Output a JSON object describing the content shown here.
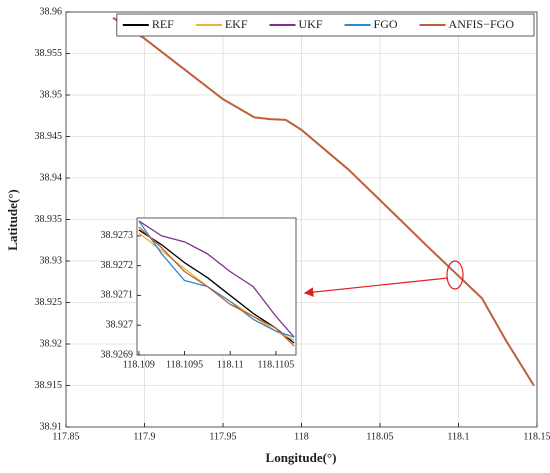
{
  "chart_data": [
    {
      "type": "line",
      "xlabel": "Longitude(°)",
      "ylabel": "Latitude(°)",
      "x": [
        117.88,
        117.9,
        117.95,
        117.97,
        117.98,
        117.99,
        118.0,
        118.03,
        118.06,
        118.08,
        118.1,
        118.115,
        118.13,
        118.148
      ],
      "series": [
        {
          "name": "REF",
          "color": "#000000",
          "values": [
            38.9593,
            38.9568,
            38.9495,
            38.9473,
            38.9471,
            38.947,
            38.9458,
            38.941,
            38.9355,
            38.9318,
            38.9282,
            38.9255,
            38.9205,
            38.915
          ]
        },
        {
          "name": "EKF",
          "color": "#e8b53a",
          "values": [
            38.9593,
            38.9568,
            38.9495,
            38.9473,
            38.9471,
            38.947,
            38.9458,
            38.941,
            38.9355,
            38.9318,
            38.9282,
            38.9255,
            38.9205,
            38.915
          ]
        },
        {
          "name": "UKF",
          "color": "#7e2f8e",
          "values": [
            38.9593,
            38.9568,
            38.9495,
            38.9473,
            38.9471,
            38.947,
            38.9458,
            38.941,
            38.9355,
            38.9318,
            38.9282,
            38.9255,
            38.9205,
            38.915
          ]
        },
        {
          "name": "FGO",
          "color": "#2b8ccc",
          "values": [
            38.9593,
            38.9568,
            38.9495,
            38.9473,
            38.9471,
            38.947,
            38.9458,
            38.941,
            38.9355,
            38.9318,
            38.9282,
            38.9255,
            38.9205,
            38.915
          ]
        },
        {
          "name": "ANFIS−FGO",
          "color": "#c0603a",
          "values": [
            38.9593,
            38.9568,
            38.9495,
            38.9473,
            38.9471,
            38.947,
            38.9458,
            38.941,
            38.9355,
            38.9318,
            38.9282,
            38.9255,
            38.9205,
            38.915
          ]
        }
      ],
      "xlim": [
        117.85,
        118.15
      ],
      "xticks": [
        117.85,
        117.9,
        117.95,
        118,
        118.05,
        118.1,
        118.15
      ],
      "ylim": [
        38.91,
        38.96
      ],
      "yticks": [
        38.91,
        38.915,
        38.92,
        38.925,
        38.93,
        38.935,
        38.94,
        38.945,
        38.95,
        38.955,
        38.96
      ],
      "grid": true,
      "legend": "top"
    },
    {
      "type": "line",
      "x": [
        118.109,
        118.10925,
        118.1095,
        118.10975,
        118.11,
        118.11025,
        118.1105,
        118.1107
      ],
      "series": [
        {
          "color": "#000000",
          "values": [
            38.92732,
            38.92727,
            38.92721,
            38.92716,
            38.9271,
            38.92704,
            38.92699,
            38.92694
          ]
        },
        {
          "color": "#e8b53a",
          "values": [
            38.92731,
            38.92725,
            38.92719,
            38.92713,
            38.92708,
            38.92703,
            38.92698,
            38.92695
          ]
        },
        {
          "color": "#7e2f8e",
          "values": [
            38.92735,
            38.9273,
            38.92728,
            38.92724,
            38.92718,
            38.92713,
            38.92703,
            38.92696
          ]
        },
        {
          "color": "#2b8ccc",
          "values": [
            38.92735,
            38.92724,
            38.92715,
            38.92713,
            38.92708,
            38.92702,
            38.92698,
            38.92696
          ]
        },
        {
          "color": "#c0603a",
          "values": [
            38.92733,
            38.92726,
            38.92718,
            38.92713,
            38.92707,
            38.92703,
            38.92699,
            38.92693
          ]
        }
      ],
      "xlim": [
        118.10898,
        118.11072
      ],
      "xticks": [
        118.109,
        118.1095,
        118.11,
        118.1105
      ],
      "ylim": [
        38.9269,
        38.92736
      ],
      "yticks": [
        38.9269,
        38.927,
        38.9271,
        38.9272,
        38.9273
      ],
      "grid": false
    }
  ]
}
